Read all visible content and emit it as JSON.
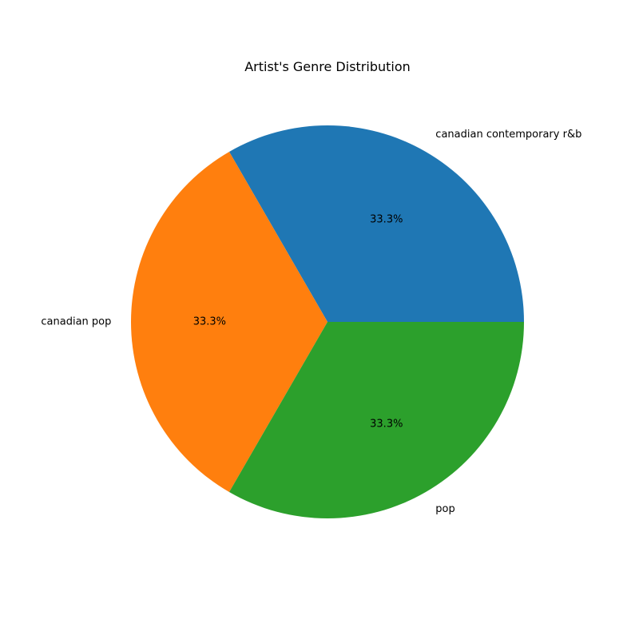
{
  "chart_data": {
    "type": "pie",
    "title": "Artist's Genre Distribution",
    "start_angle_deg": 0,
    "direction": "counterclockwise",
    "autopct_format": "%.1f%%",
    "slices": [
      {
        "label": "canadian contemporary r&b",
        "value": 1,
        "percent_label": "33.3%",
        "color": "#1f77b4"
      },
      {
        "label": "canadian pop",
        "value": 1,
        "percent_label": "33.3%",
        "color": "#ff7f0e"
      },
      {
        "label": "pop",
        "value": 1,
        "percent_label": "33.3%",
        "color": "#2ca02c"
      }
    ]
  }
}
